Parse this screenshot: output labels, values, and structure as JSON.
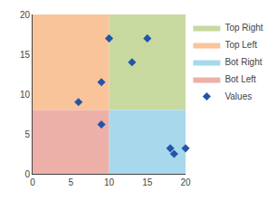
{
  "chart_data": {
    "type": "scatter",
    "x": [
      6,
      9,
      9,
      10,
      13,
      15,
      18,
      18.5,
      20
    ],
    "series": [
      {
        "name": "Values",
        "color": "#2255AA",
        "marker": "diamond",
        "values": [
          9,
          11.5,
          6.2,
          17,
          14,
          17,
          3.2,
          2.5,
          3.2
        ]
      }
    ],
    "regions": [
      {
        "name": "Top Right",
        "color": "#C8D9A0",
        "x": [
          10,
          20
        ],
        "y": [
          8,
          20
        ]
      },
      {
        "name": "Top Left",
        "color": "#F9C49A",
        "x": [
          0,
          10
        ],
        "y": [
          8,
          20
        ]
      },
      {
        "name": "Bot Right",
        "color": "#A8D8EC",
        "x": [
          10,
          20
        ],
        "y": [
          0,
          8
        ]
      },
      {
        "name": "Bot Left",
        "color": "#EDB0A8",
        "x": [
          0,
          10
        ],
        "y": [
          0,
          8
        ]
      }
    ],
    "xlim": [
      0,
      20
    ],
    "ylim": [
      0,
      20
    ],
    "xticks": [
      0,
      5,
      10,
      15,
      20
    ],
    "yticks": [
      0,
      5,
      10,
      15,
      20
    ],
    "grid": false,
    "legend": "right"
  }
}
